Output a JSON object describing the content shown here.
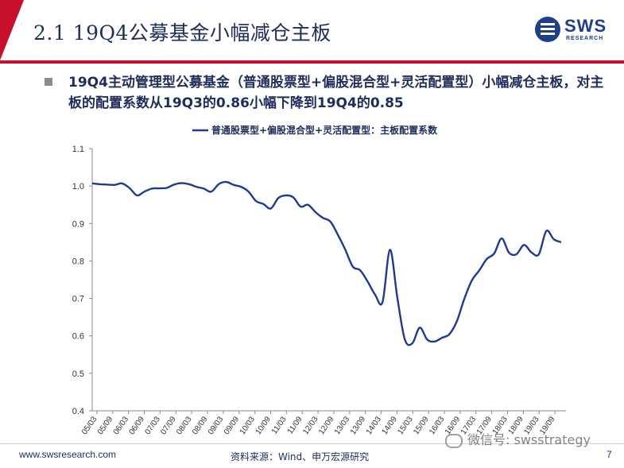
{
  "header": {
    "title": "2.1 19Q4公募基金小幅减仓主板",
    "logo_text": "SWS",
    "logo_sub": "RESEARCH"
  },
  "subtitle": "19Q4主动管理型公募基金（普通股票型+偏股混合型+灵活配置型）小幅减仓主板，对主板的配置系数从19Q3的0.86小幅下降到19Q4的0.85",
  "footer": {
    "url": "www.swsresearch.com",
    "source": "资料来源：Wind、申万宏源研究",
    "page": "7",
    "watermark": "微信号: swsstrategy"
  },
  "colors": {
    "brand_red": "#c8102e",
    "navy": "#1f2d5a",
    "line": "#1f3a8f"
  },
  "chart_data": {
    "type": "line",
    "legend": "普通股票型+偏股混合型+灵活配置型：主板配置系数",
    "legend_position": "top",
    "ylim": [
      0.4,
      1.1
    ],
    "yticks": [
      "0.4",
      "0.5",
      "0.6",
      "0.7",
      "0.8",
      "0.9",
      "1.0",
      "1.1"
    ],
    "xtick_labels": [
      "05/03",
      "05/09",
      "06/03",
      "06/09",
      "07/03",
      "07/09",
      "08/03",
      "08/09",
      "09/03",
      "09/09",
      "10/03",
      "10/09",
      "11/03",
      "11/09",
      "12/03",
      "12/09",
      "13/03",
      "13/09",
      "14/03",
      "14/09",
      "15/03",
      "15/09",
      "16/03",
      "16/09",
      "17/03",
      "17/09",
      "18/03",
      "18/09",
      "19/03",
      "19/09"
    ],
    "grid": false,
    "series": [
      {
        "values": [
          1.007,
          1.005,
          1.004,
          1.003,
          1.007,
          0.995,
          0.975,
          0.985,
          0.993,
          0.994,
          0.995,
          1.004,
          1.008,
          1.005,
          0.998,
          0.993,
          0.985,
          1.005,
          1.011,
          1.003,
          0.998,
          0.985,
          0.96,
          0.952,
          0.94,
          0.968,
          0.975,
          0.97,
          0.945,
          0.95,
          0.93,
          0.915,
          0.905,
          0.87,
          0.83,
          0.785,
          0.775,
          0.745,
          0.71,
          0.69,
          0.83,
          0.7,
          0.59,
          0.58,
          0.622,
          0.59,
          0.585,
          0.595,
          0.605,
          0.64,
          0.7,
          0.748,
          0.775,
          0.805,
          0.82,
          0.86,
          0.822,
          0.818,
          0.843,
          0.823,
          0.818,
          0.88,
          0.858,
          0.85
        ]
      }
    ]
  }
}
